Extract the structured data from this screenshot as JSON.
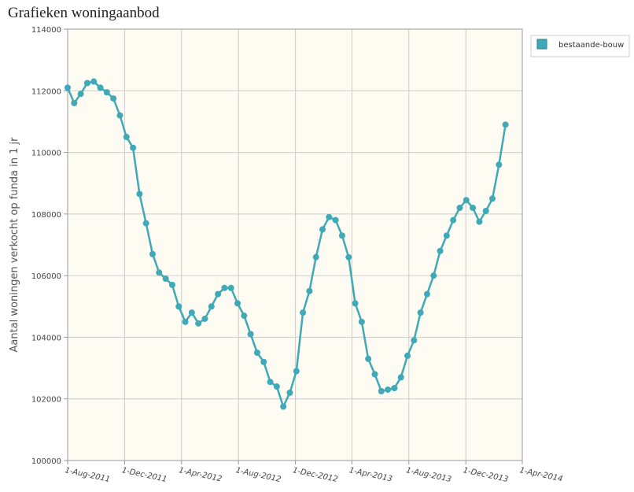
{
  "chart_data": {
    "type": "line",
    "title": "Grafieken woningaanbod",
    "y_label": "Aantal woningen verkocht op funda in 1 jr",
    "grid": true,
    "legend": "upper right",
    "x": [
      "2011-08-01",
      "2011-08-15",
      "2011-08-29",
      "2011-09-12",
      "2011-09-26",
      "2011-10-10",
      "2011-10-24",
      "2011-11-07",
      "2011-11-21",
      "2011-12-05",
      "2011-12-19",
      "2012-01-02",
      "2012-01-16",
      "2012-01-30",
      "2012-02-13",
      "2012-02-27",
      "2012-03-12",
      "2012-03-26",
      "2012-04-09",
      "2012-04-23",
      "2012-05-07",
      "2012-05-21",
      "2012-06-04",
      "2012-06-18",
      "2012-07-02",
      "2012-07-16",
      "2012-07-30",
      "2012-08-13",
      "2012-08-27",
      "2012-09-10",
      "2012-09-24",
      "2012-10-08",
      "2012-10-22",
      "2012-11-05",
      "2012-11-19",
      "2012-12-03",
      "2012-12-17",
      "2012-12-31",
      "2013-01-14",
      "2013-01-28",
      "2013-02-11",
      "2013-02-25",
      "2013-03-11",
      "2013-03-25",
      "2013-04-08",
      "2013-04-22",
      "2013-05-06",
      "2013-05-20",
      "2013-06-03",
      "2013-06-17",
      "2013-07-01",
      "2013-07-15",
      "2013-07-29",
      "2013-08-12",
      "2013-08-26",
      "2013-09-09",
      "2013-09-23",
      "2013-10-07",
      "2013-10-21",
      "2013-11-04",
      "2013-11-18",
      "2013-12-02",
      "2013-12-16",
      "2013-12-30",
      "2014-01-13",
      "2014-01-27",
      "2014-02-10",
      "2014-02-24"
    ],
    "series": [
      {
        "name": "bestaande-bouw",
        "color": "#3fa9b8",
        "values": [
          112100,
          111600,
          111900,
          112250,
          112300,
          112100,
          111950,
          111750,
          111200,
          110500,
          110150,
          108650,
          107700,
          106700,
          106100,
          105900,
          105700,
          105000,
          104500,
          104800,
          104450,
          104600,
          105000,
          105400,
          105600,
          105600,
          105100,
          104700,
          104100,
          103500,
          103200,
          102550,
          102400,
          101750,
          102200,
          102900,
          104800,
          105500,
          106600,
          107500,
          107900,
          107800,
          107300,
          106600,
          105100,
          104500,
          103300,
          102800,
          102250,
          102300,
          102350,
          102700,
          103400,
          103900,
          104800,
          105400,
          106000,
          106800,
          107300,
          107800,
          108200,
          108450,
          108200,
          107750,
          108100,
          108500,
          109600,
          110900
        ]
      }
    ],
    "xlim": [
      "2011-08-01",
      "2014-04-01"
    ],
    "xticks": [
      {
        "value": "2011-08-01",
        "label": "1-Aug-2011"
      },
      {
        "value": "2011-12-01",
        "label": "1-Dec-2011"
      },
      {
        "value": "2012-04-01",
        "label": "1-Apr-2012"
      },
      {
        "value": "2012-08-01",
        "label": "1-Aug-2012"
      },
      {
        "value": "2012-12-01",
        "label": "1-Dec-2012"
      },
      {
        "value": "2013-04-01",
        "label": "1-Apr-2013"
      },
      {
        "value": "2013-08-01",
        "label": "1-Aug-2013"
      },
      {
        "value": "2013-12-01",
        "label": "1-Dec-2013"
      },
      {
        "value": "2014-04-01",
        "label": "1-Apr-2014"
      }
    ],
    "ylim": [
      100000,
      114000
    ],
    "yticks": [
      100000,
      102000,
      104000,
      106000,
      108000,
      110000,
      112000,
      114000
    ]
  }
}
